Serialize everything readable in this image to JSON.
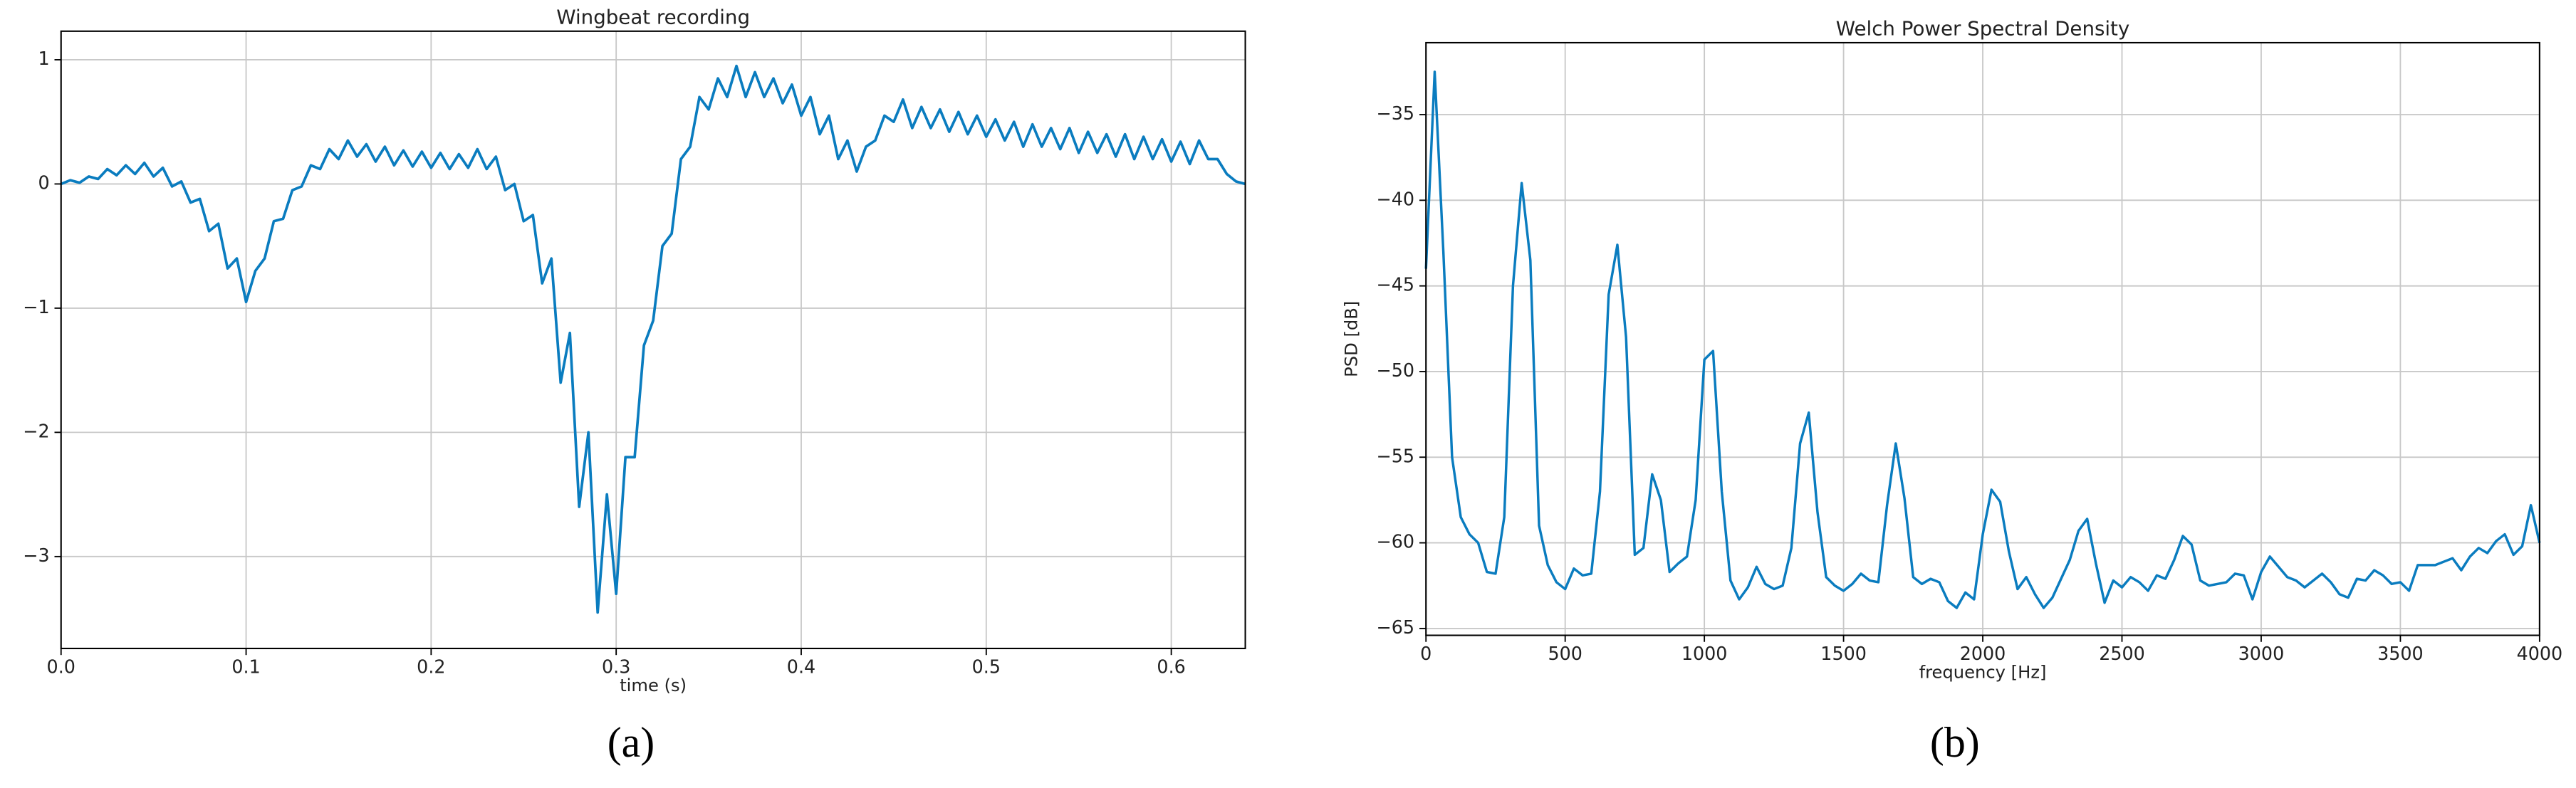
{
  "chart_data": [
    {
      "type": "line",
      "title": "Wingbeat recording",
      "xlabel": "time (s)",
      "color": "#0a7cbf",
      "grid": true,
      "xlim": [
        0,
        0.64
      ],
      "ylim": [
        -3.74,
        1.23
      ],
      "xticks": [
        {
          "value": 0,
          "label": "0.0"
        },
        {
          "value": 0.1,
          "label": "0.1"
        },
        {
          "value": 0.2,
          "label": "0.2"
        },
        {
          "value": 0.3,
          "label": "0.3"
        },
        {
          "value": 0.4,
          "label": "0.4"
        },
        {
          "value": 0.5,
          "label": "0.5"
        },
        {
          "value": 0.6,
          "label": "0.6"
        }
      ],
      "yticks": [
        {
          "value": -3,
          "label": "−3"
        },
        {
          "value": -2,
          "label": "−2"
        },
        {
          "value": -1,
          "label": "−1"
        },
        0,
        1
      ],
      "x": [
        0,
        0.005,
        0.01,
        0.015,
        0.02,
        0.025,
        0.03,
        0.035,
        0.04,
        0.045,
        0.05,
        0.055,
        0.06,
        0.065,
        0.07,
        0.075,
        0.08,
        0.085,
        0.09,
        0.095,
        0.1,
        0.105,
        0.11,
        0.115,
        0.12,
        0.125,
        0.13,
        0.135,
        0.14,
        0.145,
        0.15,
        0.155,
        0.16,
        0.165,
        0.17,
        0.175,
        0.18,
        0.185,
        0.19,
        0.195,
        0.2,
        0.205,
        0.21,
        0.215,
        0.22,
        0.225,
        0.23,
        0.235,
        0.24,
        0.245,
        0.25,
        0.255,
        0.26,
        0.265,
        0.27,
        0.275,
        0.28,
        0.285,
        0.29,
        0.295,
        0.3,
        0.305,
        0.31,
        0.315,
        0.32,
        0.325,
        0.33,
        0.335,
        0.34,
        0.345,
        0.35,
        0.355,
        0.36,
        0.365,
        0.37,
        0.375,
        0.38,
        0.385,
        0.39,
        0.395,
        0.4,
        0.405,
        0.41,
        0.415,
        0.42,
        0.425,
        0.43,
        0.435,
        0.44,
        0.445,
        0.45,
        0.455,
        0.46,
        0.465,
        0.47,
        0.475,
        0.48,
        0.485,
        0.49,
        0.495,
        0.5,
        0.505,
        0.51,
        0.515,
        0.52,
        0.525,
        0.53,
        0.535,
        0.54,
        0.545,
        0.55,
        0.555,
        0.56,
        0.565,
        0.57,
        0.575,
        0.58,
        0.585,
        0.59,
        0.595,
        0.6,
        0.605,
        0.61,
        0.615,
        0.62,
        0.625,
        0.63,
        0.635,
        0.64
      ],
      "values": [
        0,
        0.03,
        0.01,
        0.06,
        0.04,
        0.12,
        0.07,
        0.15,
        0.08,
        0.17,
        0.06,
        0.13,
        -0.02,
        0.02,
        -0.15,
        -0.12,
        -0.38,
        -0.32,
        -0.68,
        -0.6,
        -0.95,
        -0.7,
        -0.6,
        -0.3,
        -0.28,
        -0.05,
        -0.02,
        0.15,
        0.12,
        0.28,
        0.2,
        0.35,
        0.22,
        0.32,
        0.18,
        0.3,
        0.15,
        0.27,
        0.14,
        0.26,
        0.13,
        0.25,
        0.12,
        0.24,
        0.13,
        0.28,
        0.12,
        0.22,
        -0.05,
        0,
        -0.3,
        -0.25,
        -0.8,
        -0.6,
        -1.6,
        -1.2,
        -2.6,
        -2,
        -3.45,
        -2.5,
        -3.3,
        -2.2,
        -2.2,
        -1.3,
        -1.1,
        -0.5,
        -0.4,
        0.2,
        0.3,
        0.7,
        0.6,
        0.85,
        0.7,
        0.95,
        0.7,
        0.9,
        0.7,
        0.85,
        0.65,
        0.8,
        0.55,
        0.7,
        0.4,
        0.55,
        0.2,
        0.35,
        0.1,
        0.3,
        0.35,
        0.55,
        0.5,
        0.68,
        0.45,
        0.62,
        0.45,
        0.6,
        0.42,
        0.58,
        0.4,
        0.55,
        0.38,
        0.52,
        0.35,
        0.5,
        0.3,
        0.48,
        0.3,
        0.45,
        0.28,
        0.45,
        0.25,
        0.42,
        0.25,
        0.4,
        0.22,
        0.4,
        0.2,
        0.38,
        0.2,
        0.36,
        0.18,
        0.34,
        0.16,
        0.35,
        0.2,
        0.2,
        0.08,
        0.02,
        0
      ]
    },
    {
      "type": "line",
      "title": "Welch Power Spectral Density",
      "xlabel": "frequency [Hz]",
      "ylabel": "PSD [dB]",
      "color": "#0a7cbf",
      "grid": true,
      "xlim": [
        0,
        4000
      ],
      "ylim": [
        -65.4,
        -30.8
      ],
      "xticks": [
        0,
        500,
        1000,
        1500,
        2000,
        2500,
        3000,
        3500,
        4000
      ],
      "yticks": [
        {
          "value": -65,
          "label": "−65"
        },
        {
          "value": -60,
          "label": "−60"
        },
        {
          "value": -55,
          "label": "−55"
        },
        {
          "value": -50,
          "label": "−50"
        },
        {
          "value": -45,
          "label": "−45"
        },
        {
          "value": -40,
          "label": "−40"
        },
        {
          "value": -35,
          "label": "−35"
        }
      ],
      "x": [
        0,
        31.25,
        62.5,
        93.75,
        125,
        156.25,
        187.5,
        218.75,
        250,
        281.25,
        312.5,
        343.75,
        375,
        406.25,
        437.5,
        468.75,
        500,
        531.25,
        562.5,
        593.75,
        625,
        656.25,
        687.5,
        718.75,
        750,
        781.25,
        812.5,
        843.75,
        875,
        906.25,
        937.5,
        968.75,
        1000,
        1031.25,
        1062.5,
        1093.75,
        1125,
        1156.25,
        1187.5,
        1218.75,
        1250,
        1281.25,
        1312.5,
        1343.75,
        1375,
        1406.25,
        1437.5,
        1468.75,
        1500,
        1531.25,
        1562.5,
        1593.75,
        1625,
        1656.25,
        1687.5,
        1718.75,
        1750,
        1781.25,
        1812.5,
        1843.75,
        1875,
        1906.25,
        1937.5,
        1968.75,
        2000,
        2031.25,
        2062.5,
        2093.75,
        2125,
        2156.25,
        2187.5,
        2218.75,
        2250,
        2281.25,
        2312.5,
        2343.75,
        2375,
        2406.25,
        2437.5,
        2468.75,
        2500,
        2531.25,
        2562.5,
        2593.75,
        2625,
        2656.25,
        2687.5,
        2718.75,
        2750,
        2781.25,
        2812.5,
        2843.75,
        2875,
        2906.25,
        2937.5,
        2968.75,
        3000,
        3031.25,
        3062.5,
        3093.75,
        3125,
        3156.25,
        3187.5,
        3218.75,
        3250,
        3281.25,
        3312.5,
        3343.75,
        3375,
        3406.25,
        3437.5,
        3468.75,
        3500,
        3531.25,
        3562.5,
        3593.75,
        3625,
        3656.25,
        3687.5,
        3718.75,
        3750,
        3781.25,
        3812.5,
        3843.75,
        3875,
        3906.25,
        3937.5,
        3968.75,
        4000
      ],
      "values": [
        -44,
        -32.5,
        -43,
        -55,
        -58.5,
        -59.5,
        -60,
        -61.7,
        -61.8,
        -58.5,
        -45,
        -39,
        -43.5,
        -59,
        -61.3,
        -62.3,
        -62.7,
        -61.5,
        -61.9,
        -61.8,
        -57,
        -45.5,
        -42.6,
        -48,
        -60.7,
        -60.3,
        -56,
        -57.5,
        -61.7,
        -61.2,
        -60.8,
        -57.5,
        -49.3,
        -48.8,
        -57,
        -62.2,
        -63.3,
        -62.6,
        -61.4,
        -62.4,
        -62.7,
        -62.5,
        -60.3,
        -54.2,
        -52.4,
        -58.2,
        -62,
        -62.5,
        -62.8,
        -62.4,
        -61.8,
        -62.2,
        -62.3,
        -57.8,
        -54.2,
        -57.4,
        -62,
        -62.4,
        -62.1,
        -62.3,
        -63.4,
        -63.8,
        -62.9,
        -63.3,
        -59.5,
        -56.9,
        -57.6,
        -60.5,
        -62.7,
        -62,
        -63,
        -63.8,
        -63.2,
        -62.1,
        -61,
        -59.3,
        -58.6,
        -61.2,
        -63.5,
        -62.2,
        -62.6,
        -62,
        -62.3,
        -62.8,
        -61.9,
        -62.1,
        -61,
        -59.6,
        -60.1,
        -62.2,
        -62.5,
        -62.4,
        -62.3,
        -61.8,
        -61.9,
        -63.3,
        -61.7,
        -60.8,
        -61.4,
        -62,
        -62.2,
        -62.6,
        -62.2,
        -61.8,
        -62.3,
        -63,
        -63.2,
        -62.1,
        -62.2,
        -61.6,
        -61.9,
        -62.4,
        -62.3,
        -62.8,
        -61.3,
        -61.3,
        -61.3,
        -61.1,
        -60.9,
        -61.6,
        -60.8,
        -60.3,
        -60.6,
        -59.9,
        -59.5,
        -60.7,
        -60.2,
        -57.8,
        -60
      ]
    }
  ],
  "captions": [
    "(a)",
    "(b)"
  ]
}
